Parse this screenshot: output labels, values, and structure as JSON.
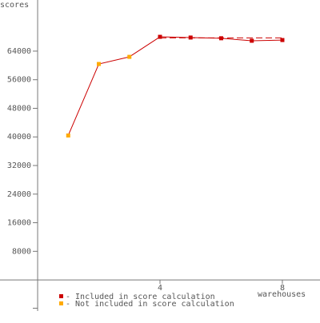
{
  "chart_data": {
    "type": "line",
    "y_label": "scores",
    "x_label": "warehouses",
    "line_color": "#cc0000",
    "series": [
      {
        "name": "- Included in score calculation",
        "color": "#cc0000",
        "x": [
          4,
          5,
          6,
          7,
          8
        ],
        "values": [
          68000,
          67800,
          67600,
          66900,
          67100
        ]
      },
      {
        "name": "- Not included in score calculation",
        "color": "#ffaa00",
        "x": [
          1,
          2,
          3
        ],
        "values": [
          40400,
          60400,
          62400
        ]
      }
    ],
    "reference_line": {
      "value": 67700,
      "x": [
        4,
        8
      ]
    },
    "xlim": [
      -1.23,
      9.23
    ],
    "xticks": [
      4,
      8
    ],
    "ylim": [
      -8700,
      78300
    ],
    "yticks": [
      8000,
      16000,
      24000,
      32000,
      40000,
      48000,
      56000,
      64000
    ]
  }
}
